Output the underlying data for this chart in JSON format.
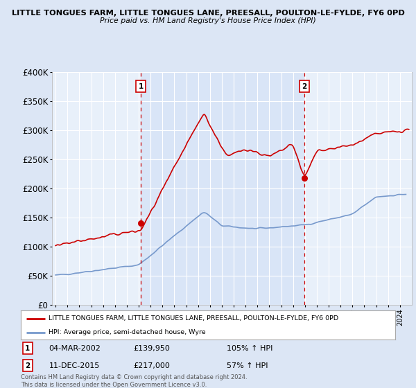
{
  "title": "LITTLE TONGUES FARM, LITTLE TONGUES LANE, PREESALL, POULTON-LE-FYLDE, FY6 0PD",
  "subtitle": "Price paid vs. HM Land Registry's House Price Index (HPI)",
  "bg_color": "#dce6f5",
  "plot_bg_color": "#e8f0fa",
  "shade_color": "#d0dff5",
  "red_line_color": "#cc0000",
  "blue_line_color": "#7799cc",
  "sale1_date": 2002.17,
  "sale1_price": 139950,
  "sale1_label": "1",
  "sale1_text": "04-MAR-2002",
  "sale1_amount": "£139,950",
  "sale1_pct": "105% ↑ HPI",
  "sale2_date": 2015.94,
  "sale2_price": 217000,
  "sale2_label": "2",
  "sale2_text": "11-DEC-2015",
  "sale2_amount": "£217,000",
  "sale2_pct": "57% ↑ HPI",
  "legend_line1": "LITTLE TONGUES FARM, LITTLE TONGUES LANE, PREESALL, POULTON-LE-FYLDE, FY6 0PD",
  "legend_line2": "HPI: Average price, semi-detached house, Wyre",
  "footer": "Contains HM Land Registry data © Crown copyright and database right 2024.\nThis data is licensed under the Open Government Licence v3.0.",
  "ylim": [
    0,
    400000
  ],
  "xlim": [
    1994.7,
    2025.0
  ]
}
